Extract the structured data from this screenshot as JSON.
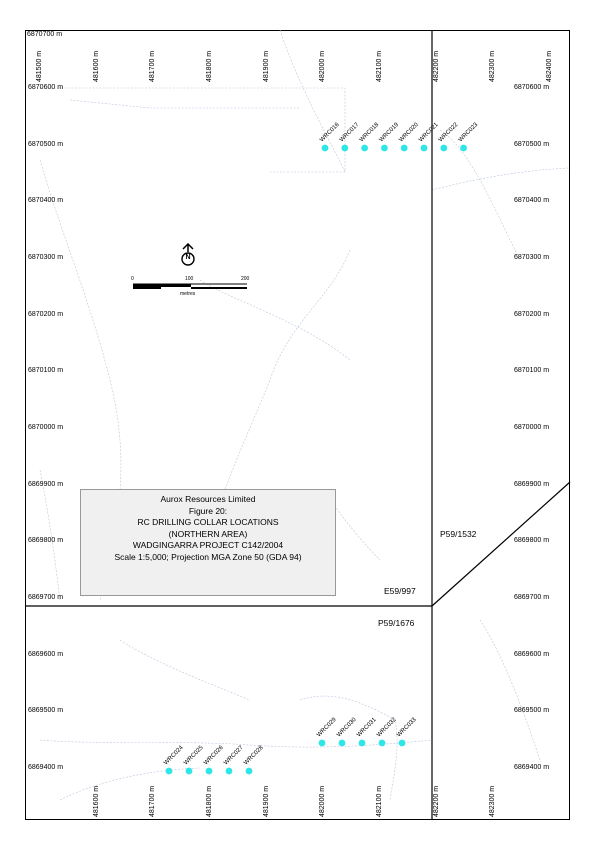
{
  "frame_label": "6870700 m",
  "eastings_top": [
    "481500 m",
    "481600 m",
    "481700 m",
    "481800 m",
    "481900 m",
    "482000 m",
    "482100 m",
    "482200 m",
    "482300 m",
    "482400 m"
  ],
  "eastings_bottom": [
    "481600 m",
    "481700 m",
    "481800 m",
    "481900 m",
    "482000 m",
    "482100 m",
    "482200 m",
    "482300 m"
  ],
  "northings_left": [
    "6870600 m",
    "6870500 m",
    "6870400 m",
    "6870300 m",
    "6870200 m",
    "6870100 m",
    "6870000 m",
    "6869900 m",
    "6869800 m",
    "6869700 m",
    "6869600 m",
    "6869500 m",
    "6869400 m"
  ],
  "northings_right": [
    "6870600 m",
    "6870500 m",
    "6870400 m",
    "6870300 m",
    "6870200 m",
    "6870100 m",
    "6870000 m",
    "6869900 m",
    "6869800 m",
    "6869700 m",
    "6869600 m",
    "6869500 m",
    "6869400 m"
  ],
  "holes_north": [
    "WRC016",
    "WRC017",
    "WRC018",
    "WRC019",
    "WRC020",
    "WRC021",
    "WRC022",
    "WRC023"
  ],
  "holes_south_east": [
    "WRC029",
    "WRC030",
    "WRC031",
    "WRC032",
    "WRC033"
  ],
  "holes_south_west": [
    "WRC024",
    "WRC025",
    "WRC026",
    "WRC027",
    "WRC028"
  ],
  "hole_color": "#2ee6e6",
  "tenements": {
    "e59_997": "E59/997",
    "p59_1532": "P59/1532",
    "p59_1676": "P59/1676"
  },
  "north_arrow": "N",
  "scale_bar": {
    "ticks": [
      "0",
      "100",
      "200"
    ],
    "unit": "metres"
  },
  "title_block": {
    "company": "Aurox Resources Limited",
    "figure": "Figure 20:",
    "title": "RC DRILLING COLLAR LOCATIONS",
    "area": "(NORTHERN AREA)",
    "project": "WADGINGARRA PROJECT C142/2004",
    "scale": "Scale 1:5,000; Projection MGA Zone 50 (GDA 94)"
  }
}
